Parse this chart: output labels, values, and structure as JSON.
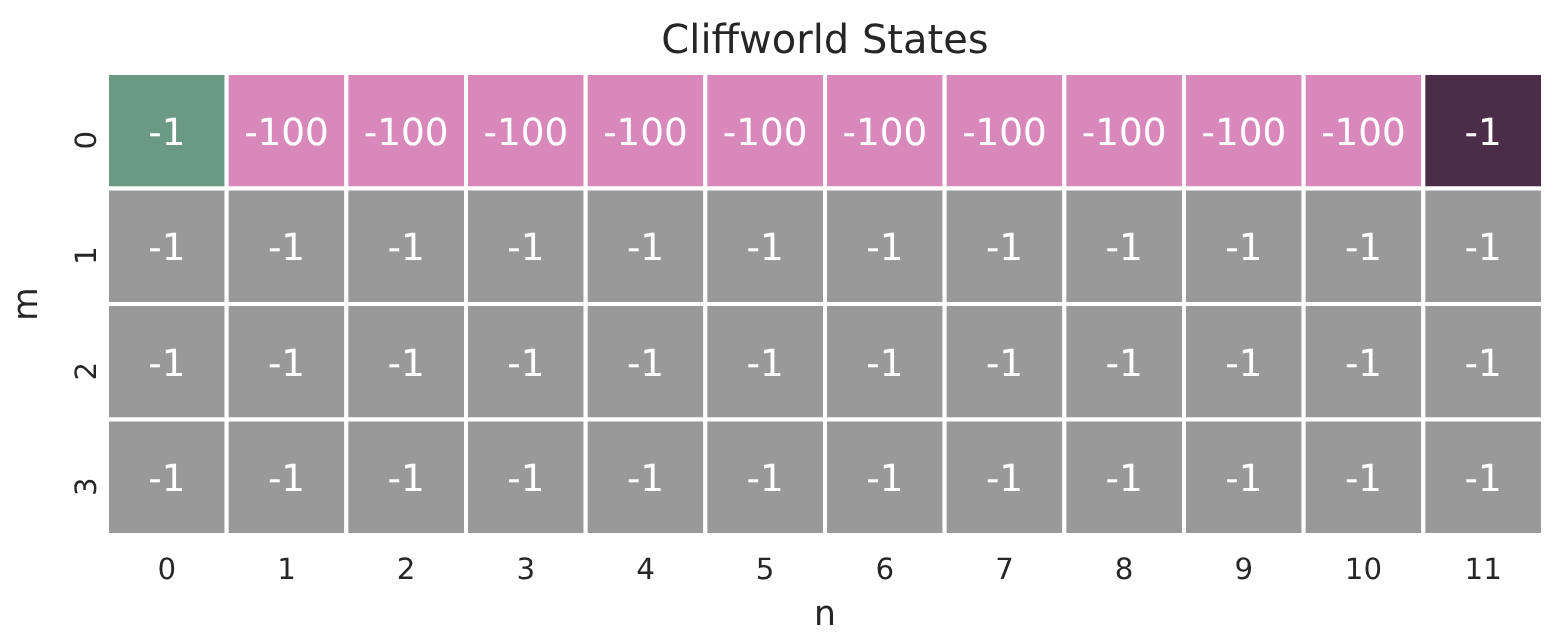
{
  "chart_data": {
    "type": "heatmap",
    "title": "Cliffworld States",
    "xlabel": "n",
    "ylabel": "m",
    "categories": [
      "0",
      "1",
      "2",
      "3",
      "4",
      "5",
      "6",
      "7",
      "8",
      "9",
      "10",
      "11"
    ],
    "y_categories": [
      "0",
      "1",
      "2",
      "3"
    ],
    "cells": [
      [
        -1,
        -100,
        -100,
        -100,
        -100,
        -100,
        -100,
        -100,
        -100,
        -100,
        -100,
        -1
      ],
      [
        -1,
        -1,
        -1,
        -1,
        -1,
        -1,
        -1,
        -1,
        -1,
        -1,
        -1,
        -1
      ],
      [
        -1,
        -1,
        -1,
        -1,
        -1,
        -1,
        -1,
        -1,
        -1,
        -1,
        -1,
        -1
      ],
      [
        -1,
        -1,
        -1,
        -1,
        -1,
        -1,
        -1,
        -1,
        -1,
        -1,
        -1,
        -1
      ]
    ],
    "colors": [
      [
        "#6b9a84",
        "#d988bb",
        "#d988bb",
        "#d988bb",
        "#d988bb",
        "#d988bb",
        "#d988bb",
        "#d988bb",
        "#d988bb",
        "#d988bb",
        "#d988bb",
        "#4b2d47"
      ],
      [
        "#999999",
        "#999999",
        "#999999",
        "#999999",
        "#999999",
        "#999999",
        "#999999",
        "#999999",
        "#999999",
        "#999999",
        "#999999",
        "#999999"
      ],
      [
        "#999999",
        "#999999",
        "#999999",
        "#999999",
        "#999999",
        "#999999",
        "#999999",
        "#999999",
        "#999999",
        "#999999",
        "#999999",
        "#999999"
      ],
      [
        "#999999",
        "#999999",
        "#999999",
        "#999999",
        "#999999",
        "#999999",
        "#999999",
        "#999999",
        "#999999",
        "#999999",
        "#999999",
        "#999999"
      ]
    ],
    "data_labels": true
  }
}
